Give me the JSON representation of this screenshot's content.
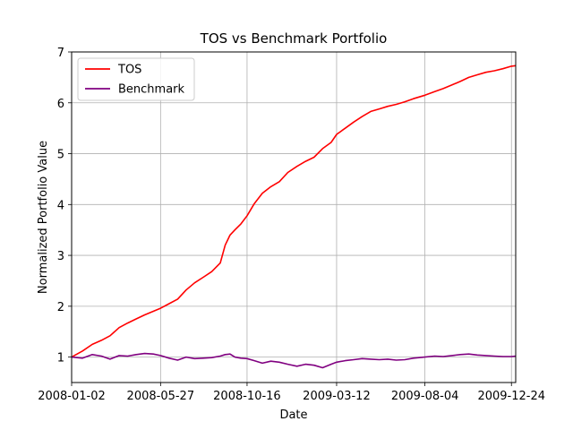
{
  "chart_data": {
    "type": "line",
    "title": "TOS vs Benchmark Portfolio",
    "xlabel": "Date",
    "ylabel": "Normalized Portfolio Value",
    "xlim": [
      "2008-01-02",
      "2009-12-31"
    ],
    "ylim": [
      0.5,
      7.0
    ],
    "grid": true,
    "legend": "top-left",
    "x_ticks": [
      "2008-01-02",
      "2008-05-27",
      "2008-10-16",
      "2009-03-12",
      "2009-08-04",
      "2009-12-24"
    ],
    "y_ticks": [
      1,
      2,
      3,
      4,
      5,
      6,
      7
    ],
    "series": [
      {
        "name": "TOS",
        "color": "#ff0000",
        "x": [
          "2008-01-02",
          "2008-01-20",
          "2008-02-05",
          "2008-02-20",
          "2008-03-05",
          "2008-03-20",
          "2008-04-03",
          "2008-04-17",
          "2008-05-01",
          "2008-05-15",
          "2008-05-27",
          "2008-06-10",
          "2008-06-24",
          "2008-07-08",
          "2008-07-22",
          "2008-08-05",
          "2008-08-19",
          "2008-09-02",
          "2008-09-10",
          "2008-09-18",
          "2008-09-26",
          "2008-10-06",
          "2008-10-16",
          "2008-10-28",
          "2008-11-10",
          "2008-11-24",
          "2008-12-08",
          "2008-12-22",
          "2009-01-06",
          "2009-01-20",
          "2009-02-03",
          "2009-02-17",
          "2009-03-03",
          "2009-03-12",
          "2009-03-26",
          "2009-04-09",
          "2009-04-23",
          "2009-05-07",
          "2009-05-21",
          "2009-06-04",
          "2009-06-18",
          "2009-07-02",
          "2009-07-16",
          "2009-08-04",
          "2009-08-20",
          "2009-09-03",
          "2009-09-17",
          "2009-10-01",
          "2009-10-15",
          "2009-10-29",
          "2009-11-12",
          "2009-11-26",
          "2009-12-10",
          "2009-12-24",
          "2009-12-31"
        ],
        "values": [
          1.0,
          1.12,
          1.25,
          1.33,
          1.42,
          1.58,
          1.67,
          1.75,
          1.83,
          1.9,
          1.96,
          2.05,
          2.14,
          2.32,
          2.46,
          2.57,
          2.68,
          2.85,
          3.2,
          3.4,
          3.5,
          3.62,
          3.78,
          4.02,
          4.22,
          4.35,
          4.45,
          4.63,
          4.75,
          4.85,
          4.93,
          5.1,
          5.22,
          5.38,
          5.5,
          5.62,
          5.73,
          5.83,
          5.88,
          5.93,
          5.97,
          6.02,
          6.08,
          6.15,
          6.22,
          6.28,
          6.35,
          6.42,
          6.5,
          6.55,
          6.6,
          6.63,
          6.67,
          6.72,
          6.73
        ]
      },
      {
        "name": "Benchmark",
        "color": "#800080",
        "x": [
          "2008-01-02",
          "2008-01-20",
          "2008-02-05",
          "2008-02-20",
          "2008-03-05",
          "2008-03-20",
          "2008-04-03",
          "2008-04-17",
          "2008-05-01",
          "2008-05-15",
          "2008-05-27",
          "2008-06-10",
          "2008-06-24",
          "2008-07-08",
          "2008-07-22",
          "2008-08-05",
          "2008-08-19",
          "2008-09-02",
          "2008-09-10",
          "2008-09-18",
          "2008-09-26",
          "2008-10-06",
          "2008-10-16",
          "2008-10-28",
          "2008-11-10",
          "2008-11-24",
          "2008-12-08",
          "2008-12-22",
          "2009-01-06",
          "2009-01-20",
          "2009-02-03",
          "2009-02-17",
          "2009-03-03",
          "2009-03-12",
          "2009-03-26",
          "2009-04-09",
          "2009-04-23",
          "2009-05-07",
          "2009-05-21",
          "2009-06-04",
          "2009-06-18",
          "2009-07-02",
          "2009-07-16",
          "2009-08-04",
          "2009-08-20",
          "2009-09-03",
          "2009-09-17",
          "2009-10-01",
          "2009-10-15",
          "2009-10-29",
          "2009-11-12",
          "2009-11-26",
          "2009-12-10",
          "2009-12-24",
          "2009-12-31"
        ],
        "values": [
          1.0,
          0.98,
          1.05,
          1.02,
          0.96,
          1.03,
          1.02,
          1.05,
          1.07,
          1.06,
          1.03,
          0.98,
          0.94,
          1.0,
          0.97,
          0.98,
          0.99,
          1.02,
          1.05,
          1.06,
          1.0,
          0.98,
          0.97,
          0.93,
          0.88,
          0.92,
          0.9,
          0.86,
          0.82,
          0.86,
          0.84,
          0.79,
          0.86,
          0.9,
          0.93,
          0.95,
          0.97,
          0.96,
          0.95,
          0.96,
          0.94,
          0.95,
          0.98,
          1.0,
          1.02,
          1.01,
          1.03,
          1.05,
          1.06,
          1.04,
          1.03,
          1.02,
          1.01,
          1.01,
          1.02
        ]
      }
    ]
  }
}
